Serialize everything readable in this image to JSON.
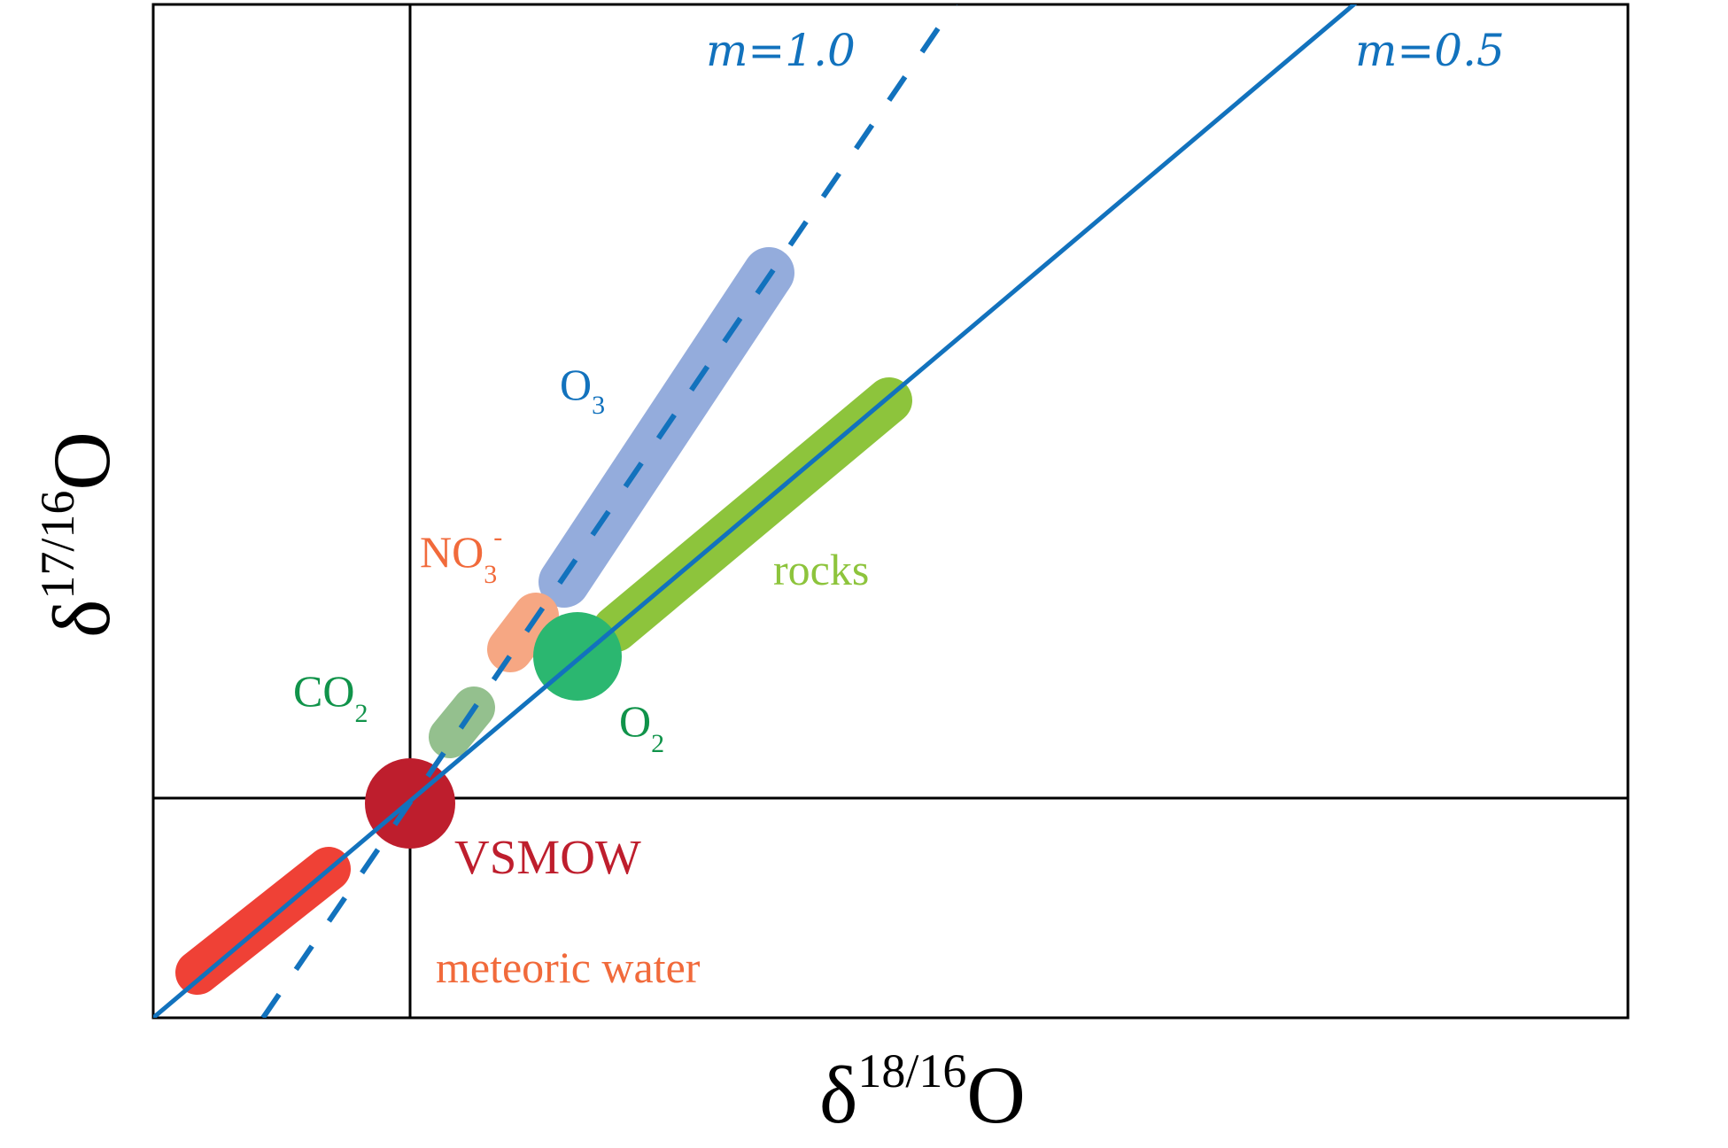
{
  "axes": {
    "x_label": {
      "delta": "δ",
      "sup": "18/16",
      "base": "O"
    },
    "y_label": {
      "delta": "δ",
      "sup": "17/16",
      "base": "O"
    }
  },
  "reference_lines": {
    "slope_half": {
      "text": "m=0.5",
      "color": "#1272bd",
      "style": "solid"
    },
    "slope_one": {
      "text": "m=1.0",
      "color": "#1272bd",
      "style": "dashed"
    }
  },
  "regions": {
    "o3": {
      "base": "O",
      "sub": "3",
      "color": "#1272bd",
      "fill": "#94acdc"
    },
    "nitrate": {
      "base": "NO",
      "sub": "3",
      "sup": "-",
      "color": "#f16a3b",
      "fill": "#f6a783"
    },
    "rocks": {
      "text": "rocks",
      "color": "#8dc43c",
      "fill": "#8dc43c"
    },
    "co2": {
      "base": "CO",
      "sub": "2",
      "color": "#10934a",
      "fill": "#94c08e"
    },
    "o2": {
      "base": "O",
      "sub": "2",
      "color": "#10934a",
      "fill": "#2bb770"
    },
    "vsmow": {
      "text": "VSMOW",
      "color": "#be1e2d",
      "fill": "#be1e2d"
    },
    "meteoric_water": {
      "text": "meteoric water",
      "color": "#f16a3b",
      "fill": "#ef4136"
    }
  }
}
